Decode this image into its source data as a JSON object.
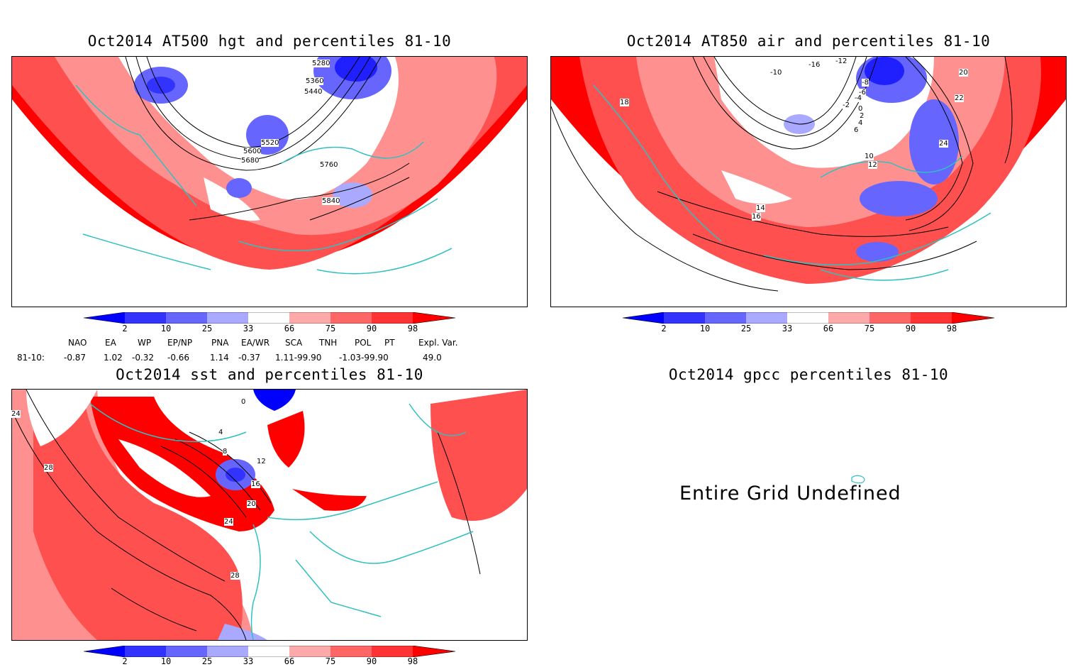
{
  "panels": [
    {
      "title": "Oct2014 AT500 hgt and percentiles 81-10",
      "contour_labels": [
        "5280",
        "5360",
        "5440",
        "5520",
        "5600",
        "5680",
        "5760",
        "5840"
      ]
    },
    {
      "title": "Oct2014 AT850 air and percentiles 81-10",
      "contour_labels": [
        "-16",
        "-12",
        "-10",
        "-8",
        "-6",
        "-4",
        "-2",
        "0",
        "2",
        "4",
        "6",
        "10",
        "12",
        "14",
        "16",
        "18",
        "20",
        "22",
        "24"
      ]
    },
    {
      "title": "Oct2014 sst and percentiles 81-10",
      "contour_labels": [
        "24",
        "28",
        "0",
        "4",
        "8",
        "12",
        "16",
        "20",
        "24",
        "28"
      ]
    },
    {
      "title": "Oct2014 gpcc percentiles 81-10",
      "undefined_text": "Entire Grid Undefined"
    }
  ],
  "colorbar": {
    "labels": [
      "2",
      "10",
      "25",
      "33",
      "66",
      "75",
      "90",
      "98"
    ],
    "colors": [
      "#0000ff",
      "#3333ff",
      "#6666ff",
      "#a9a9ff",
      "#ffffff",
      "#ffaaaa",
      "#ff6666",
      "#ff3333",
      "#ff0000"
    ]
  },
  "teleconnections": {
    "headers": [
      "NAO",
      "EA",
      "WP",
      "EP/NP",
      "PNA",
      "EA/WR",
      "SCA",
      "TNH",
      "POL",
      "PT",
      "Expl. Var."
    ],
    "row_label": "81-10:",
    "values": [
      "-0.87",
      "1.02",
      "-0.32",
      "-0.66",
      "1.14",
      "-0.37",
      "1.11-99.90",
      "-1.03-99.90",
      "49.0"
    ]
  },
  "colors": {
    "warm_strong": "#ff0000",
    "warm_mid": "#ff5050",
    "warm_light": "#ffaaaa",
    "cold_strong": "#2020ff",
    "cold_mid": "#6666ff",
    "cold_light": "#aaaaff",
    "coast": "#30c0c0",
    "contour": "#000000"
  }
}
